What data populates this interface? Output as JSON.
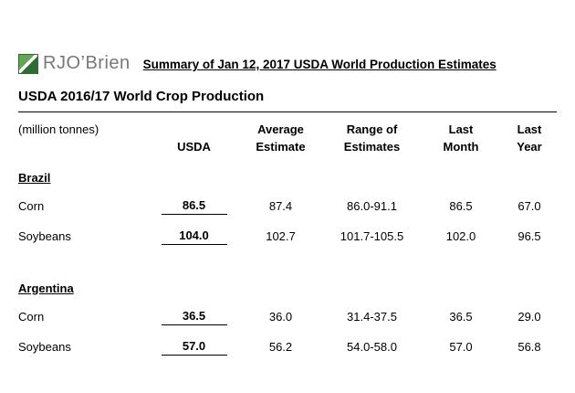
{
  "logo": {
    "text": "RJO’Brien",
    "icon": "rjobrien-green-square",
    "green": "#2f6b35",
    "gray": "#77787b"
  },
  "header": {
    "title": "Summary of Jan 12, 2017 USDA World Production Estimates"
  },
  "subtitle": "USDA 2016/17 World Crop Production",
  "table": {
    "unit_label": "(million tonnes)",
    "columns": [
      {
        "label": "USDA"
      },
      {
        "label": "Average\nEstimate"
      },
      {
        "label": "Range of\nEstimates"
      },
      {
        "label": "Last\nMonth"
      },
      {
        "label": "Last\nYear"
      }
    ],
    "sections": [
      {
        "name": "Brazil",
        "rows": [
          {
            "label": "Corn",
            "usda": "86.5",
            "avg": "87.4",
            "range": "86.0-91.1",
            "last_month": "86.5",
            "last_year": "67.0"
          },
          {
            "label": "Soybeans",
            "usda": "104.0",
            "avg": "102.7",
            "range": "101.7-105.5",
            "last_month": "102.0",
            "last_year": "96.5"
          }
        ]
      },
      {
        "name": "Argentina",
        "rows": [
          {
            "label": "Corn",
            "usda": "36.5",
            "avg": "36.0",
            "range": "31.4-37.5",
            "last_month": "36.5",
            "last_year": "29.0"
          },
          {
            "label": "Soybeans",
            "usda": "57.0",
            "avg": "56.2",
            "range": "54.0-58.0",
            "last_month": "57.0",
            "last_year": "56.8"
          }
        ]
      }
    ]
  }
}
